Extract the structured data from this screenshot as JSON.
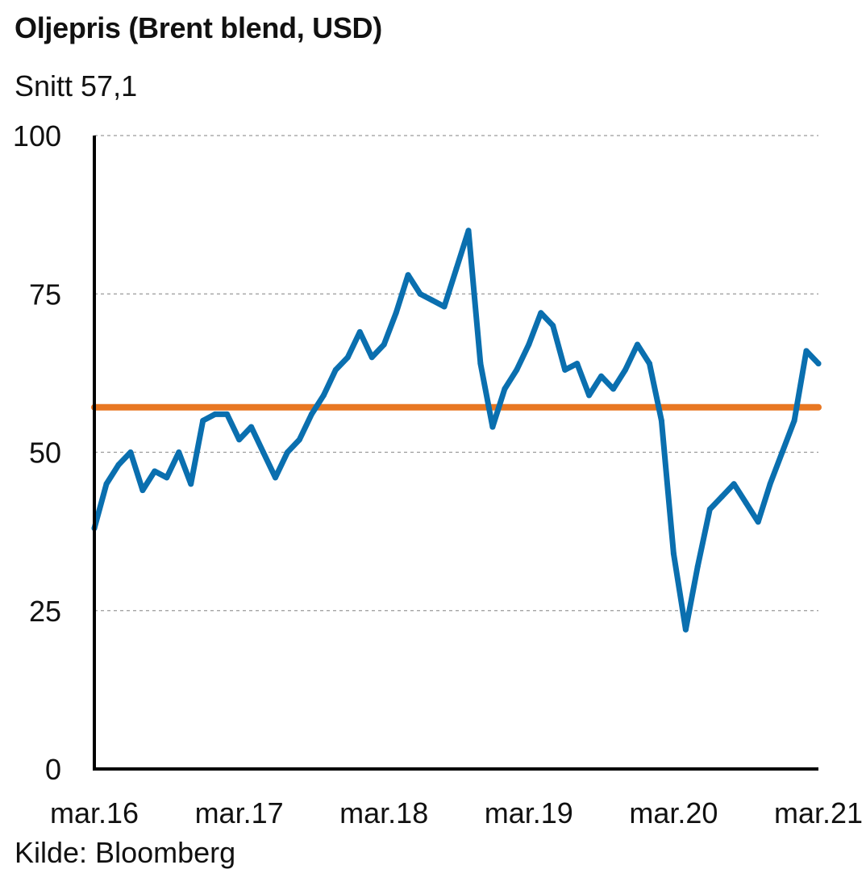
{
  "chart_data": {
    "type": "line",
    "title": "Oljepris (Brent blend, USD)",
    "subtitle": "Snitt 57,1",
    "source": "Kilde: Bloomberg",
    "ylim": [
      0,
      100
    ],
    "yticks": [
      0,
      25,
      50,
      75,
      100
    ],
    "ytick_labels": [
      "0",
      "25",
      "50",
      "75",
      "100"
    ],
    "xlim": [
      "2016-03",
      "2021-03"
    ],
    "xtick_labels": [
      "mar.16",
      "mar.17",
      "mar.18",
      "mar.19",
      "mar.20",
      "mar.21"
    ],
    "grid": "horizontal dashed",
    "colors": {
      "series": "#0a6faf",
      "average": "#e87722",
      "grid": "#9a9a9a",
      "axis": "#000000"
    },
    "average_line": {
      "value": 57.1
    },
    "series": [
      {
        "x": [
          "2016-03",
          "2016-04",
          "2016-05",
          "2016-06",
          "2016-07",
          "2016-08",
          "2016-09",
          "2016-10",
          "2016-11",
          "2016-12",
          "2017-01",
          "2017-02",
          "2017-03",
          "2017-04",
          "2017-05",
          "2017-06",
          "2017-07",
          "2017-08",
          "2017-09",
          "2017-10",
          "2017-11",
          "2017-12",
          "2018-01",
          "2018-02",
          "2018-03",
          "2018-04",
          "2018-05",
          "2018-06",
          "2018-07",
          "2018-08",
          "2018-09",
          "2018-10",
          "2018-11",
          "2018-12",
          "2019-01",
          "2019-02",
          "2019-03",
          "2019-04",
          "2019-05",
          "2019-06",
          "2019-07",
          "2019-08",
          "2019-09",
          "2019-10",
          "2019-11",
          "2019-12",
          "2020-01",
          "2020-02",
          "2020-03",
          "2020-04",
          "2020-05",
          "2020-06",
          "2020-07",
          "2020-08",
          "2020-09",
          "2020-10",
          "2020-11",
          "2020-12",
          "2021-01",
          "2021-02",
          "2021-03"
        ],
        "values": [
          38,
          45,
          48,
          50,
          44,
          47,
          46,
          50,
          45,
          55,
          56,
          56,
          52,
          54,
          50,
          46,
          50,
          52,
          56,
          59,
          63,
          65,
          69,
          65,
          67,
          72,
          78,
          75,
          74,
          73,
          79,
          85,
          64,
          54,
          60,
          63,
          67,
          72,
          70,
          63,
          64,
          59,
          62,
          60,
          63,
          67,
          64,
          55,
          34,
          22,
          32,
          41,
          43,
          45,
          42,
          39,
          45,
          50,
          55,
          66,
          64
        ]
      }
    ]
  }
}
